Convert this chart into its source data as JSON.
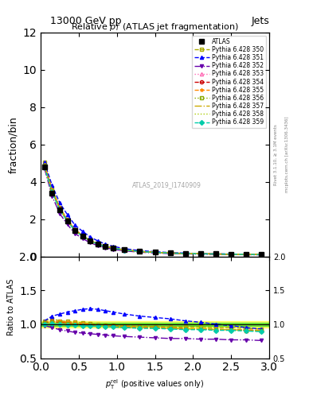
{
  "title_top": "13000 GeV pp",
  "title_right": "Jets",
  "plot_title": "Relative $p_T$ (ATLAS jet fragmentation)",
  "ylabel_main": "fraction/bin",
  "ylabel_ratio": "Ratio to ATLAS",
  "watermark": "ATLAS_2019_I1740909",
  "rivet_label": "Rivet 3.1.10, ≥ 3.1M events",
  "mcplots_label": "mcplots.cern.ch [arXiv:1306.3436]",
  "xlim": [
    0,
    3
  ],
  "ylim_main": [
    0,
    12
  ],
  "ylim_ratio": [
    0.5,
    2
  ],
  "atlas_data": {
    "x": [
      0.05,
      0.15,
      0.25,
      0.35,
      0.45,
      0.55,
      0.65,
      0.75,
      0.85,
      0.95,
      1.1,
      1.3,
      1.5,
      1.7,
      1.9,
      2.1,
      2.3,
      2.5,
      2.7,
      2.9
    ],
    "y": [
      4.8,
      3.4,
      2.5,
      1.9,
      1.4,
      1.1,
      0.85,
      0.68,
      0.55,
      0.46,
      0.36,
      0.28,
      0.23,
      0.19,
      0.17,
      0.15,
      0.14,
      0.13,
      0.12,
      0.11
    ],
    "color": "#000000",
    "marker": "s",
    "markersize": 5,
    "label": "ATLAS"
  },
  "mc_series": [
    {
      "label": "Pythia 6.428 350",
      "color": "#aaaa00",
      "linestyle": "--",
      "marker": "s",
      "markerfacecolor": "none",
      "ratio": [
        1.05,
        1.08,
        1.05,
        1.04,
        1.03,
        1.02,
        1.01,
        1.0,
        0.99,
        0.99,
        0.98,
        0.97,
        0.97,
        0.96,
        0.96,
        0.96,
        0.95,
        0.95,
        0.94,
        0.93
      ]
    },
    {
      "label": "Pythia 6.428 351",
      "color": "#0000ff",
      "linestyle": "--",
      "marker": "^",
      "markerfacecolor": "#0000ff",
      "ratio": [
        1.05,
        1.12,
        1.15,
        1.18,
        1.2,
        1.22,
        1.23,
        1.22,
        1.2,
        1.18,
        1.15,
        1.12,
        1.1,
        1.08,
        1.05,
        1.03,
        1.0,
        0.98,
        0.95,
        0.93
      ]
    },
    {
      "label": "Pythia 6.428 352",
      "color": "#6600aa",
      "linestyle": "-.",
      "marker": "v",
      "markerfacecolor": "#6600aa",
      "ratio": [
        0.98,
        0.95,
        0.92,
        0.9,
        0.88,
        0.87,
        0.86,
        0.85,
        0.84,
        0.83,
        0.82,
        0.81,
        0.8,
        0.79,
        0.79,
        0.78,
        0.78,
        0.77,
        0.77,
        0.76
      ]
    },
    {
      "label": "Pythia 6.428 353",
      "color": "#ff69b4",
      "linestyle": ":",
      "marker": "^",
      "markerfacecolor": "none",
      "ratio": [
        1.02,
        1.04,
        1.03,
        1.02,
        1.01,
        1.0,
        0.99,
        0.98,
        0.97,
        0.97,
        0.96,
        0.95,
        0.95,
        0.94,
        0.93,
        0.93,
        0.92,
        0.92,
        0.91,
        0.9
      ]
    },
    {
      "label": "Pythia 6.428 354",
      "color": "#cc0000",
      "linestyle": "--",
      "marker": "o",
      "markerfacecolor": "none",
      "ratio": [
        1.02,
        1.04,
        1.03,
        1.02,
        1.01,
        1.0,
        0.99,
        0.98,
        0.97,
        0.97,
        0.96,
        0.95,
        0.95,
        0.94,
        0.93,
        0.93,
        0.92,
        0.92,
        0.91,
        0.9
      ]
    },
    {
      "label": "Pythia 6.428 355",
      "color": "#ff8800",
      "linestyle": "--",
      "marker": "*",
      "markerfacecolor": "#ff8800",
      "ratio": [
        1.03,
        1.05,
        1.04,
        1.03,
        1.02,
        1.01,
        1.0,
        0.99,
        0.98,
        0.97,
        0.97,
        0.96,
        0.95,
        0.95,
        0.94,
        0.93,
        0.93,
        0.92,
        0.92,
        0.91
      ]
    },
    {
      "label": "Pythia 6.428 356",
      "color": "#88aa00",
      "linestyle": ":",
      "marker": "s",
      "markerfacecolor": "none",
      "ratio": [
        1.02,
        1.03,
        1.02,
        1.01,
        1.0,
        0.99,
        0.99,
        0.98,
        0.97,
        0.97,
        0.96,
        0.95,
        0.95,
        0.94,
        0.93,
        0.93,
        0.92,
        0.92,
        0.91,
        0.9
      ]
    },
    {
      "label": "Pythia 6.428 357",
      "color": "#ccaa00",
      "linestyle": "-.",
      "marker": null,
      "markerfacecolor": "none",
      "ratio": [
        1.01,
        1.02,
        1.01,
        1.0,
        0.99,
        0.98,
        0.98,
        0.97,
        0.97,
        0.96,
        0.95,
        0.95,
        0.94,
        0.94,
        0.93,
        0.93,
        0.92,
        0.92,
        0.91,
        0.9
      ]
    },
    {
      "label": "Pythia 6.428 358",
      "color": "#aacc00",
      "linestyle": ":",
      "marker": null,
      "markerfacecolor": "none",
      "ratio": [
        1.0,
        1.01,
        1.0,
        0.99,
        0.99,
        0.98,
        0.97,
        0.97,
        0.96,
        0.96,
        0.95,
        0.95,
        0.94,
        0.94,
        0.93,
        0.93,
        0.92,
        0.91,
        0.91,
        0.9
      ]
    },
    {
      "label": "Pythia 6.428 359",
      "color": "#00ccaa",
      "linestyle": "--",
      "marker": "D",
      "markerfacecolor": "#00ccaa",
      "ratio": [
        1.0,
        1.01,
        1.0,
        0.99,
        0.99,
        0.98,
        0.97,
        0.97,
        0.96,
        0.96,
        0.95,
        0.94,
        0.94,
        0.93,
        0.92,
        0.92,
        0.91,
        0.91,
        0.9,
        0.89
      ]
    }
  ],
  "atlas_band_color": "#ffff00",
  "atlas_band_alpha": 0.5,
  "atlas_band_inner_color": "#00cc00",
  "atlas_band_inner_alpha": 0.5,
  "atlas_band_outer": [
    0.95,
    1.05
  ],
  "atlas_band_inner": [
    0.98,
    1.02
  ]
}
